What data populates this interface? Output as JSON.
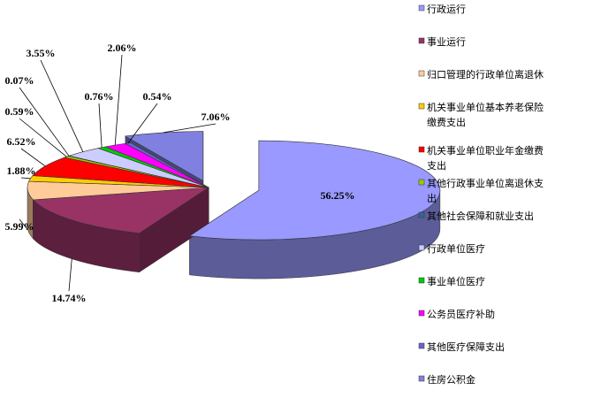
{
  "chart_data": {
    "type": "pie",
    "title": "",
    "legend_position": "right",
    "slices": [
      {
        "label": "行政运行",
        "value": 56.25,
        "display": "56.25%",
        "color": "#9999FF"
      },
      {
        "label": "事业运行",
        "value": 14.74,
        "display": "14.74%",
        "color": "#993366"
      },
      {
        "label": "归口管理的行政单位离退休",
        "value": 5.99,
        "display": "5.99%",
        "color": "#FFCC99"
      },
      {
        "label": "机关事业单位基本养老保险缴费支出",
        "value": 1.88,
        "display": "1.88%",
        "color": "#FFCC00"
      },
      {
        "label": "机关事业单位职业年金缴费支出",
        "value": 6.52,
        "display": "6.52%",
        "color": "#FF0000"
      },
      {
        "label": "其他行政事业单位离退休支出",
        "value": 0.59,
        "display": "0.59%",
        "color": "#99CC00"
      },
      {
        "label": "其他社会保障和就业支出",
        "value": 0.07,
        "display": "0.07%",
        "color": "#336699"
      },
      {
        "label": "行政单位医疗",
        "value": 3.55,
        "display": "3.55%",
        "color": "#CCCCFF"
      },
      {
        "label": "事业单位医疗",
        "value": 0.76,
        "display": "0.76%",
        "color": "#00CC00"
      },
      {
        "label": "公务员医疗补助",
        "value": 2.06,
        "display": "2.06%",
        "color": "#FF00FF"
      },
      {
        "label": "其他医疗保障支出",
        "value": 0.54,
        "display": "0.54%",
        "color": "#6666CC"
      },
      {
        "label": "住房公积金",
        "value": 7.06,
        "display": "7.06%",
        "color": "#8080E0"
      }
    ]
  }
}
